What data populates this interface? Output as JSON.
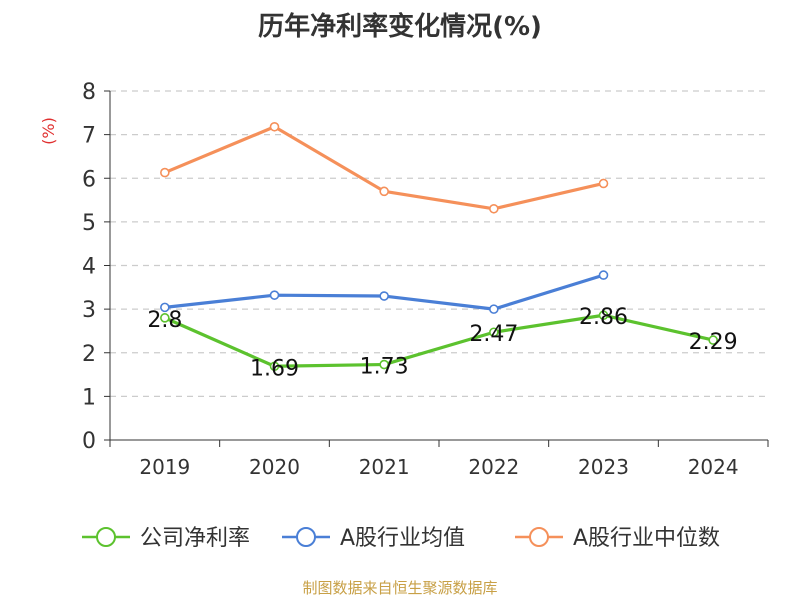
{
  "chart_data": {
    "type": "line",
    "title": "历年净利率变化情况(%)",
    "ylabel": "(%)",
    "xlabel": "",
    "ylim": [
      0,
      8
    ],
    "yticks": [
      "0",
      "1",
      "2",
      "3",
      "4",
      "5",
      "6",
      "7",
      "8"
    ],
    "categories": [
      "2019",
      "2020",
      "2021",
      "2022",
      "2023",
      "2024"
    ],
    "grid": true,
    "legend_position": "bottom",
    "series": [
      {
        "name": "公司净利率",
        "color": "#5cc22e",
        "values": [
          2.8,
          1.69,
          1.73,
          2.47,
          2.86,
          2.29
        ],
        "labels": [
          "2.8",
          "1.69",
          "1.73",
          "2.47",
          "2.86",
          "2.29"
        ]
      },
      {
        "name": "A股行业均值",
        "color": "#4a7fd6",
        "values": [
          3.04,
          3.32,
          3.3,
          3.0,
          3.78,
          null
        ]
      },
      {
        "name": "A股行业中位数",
        "color": "#f5905a",
        "values": [
          6.13,
          7.18,
          5.7,
          5.3,
          5.88,
          null
        ]
      }
    ]
  },
  "source_note": "制图数据来自恒生聚源数据库",
  "colors": {
    "axis": "#333333",
    "grid": "#cccccc",
    "ylabel": "#e03030"
  }
}
